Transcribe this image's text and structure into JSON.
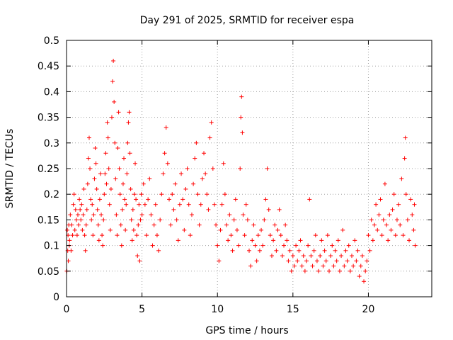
{
  "chart_data": {
    "type": "scatter",
    "title": "Day 291 of 2025, SRMTID for receiver espa",
    "xlabel": "GPS time / hours",
    "ylabel": "SRMTID / TECUs",
    "xlim": [
      0,
      24.2
    ],
    "ylim": [
      0,
      0.5
    ],
    "xticks": [
      0,
      5,
      10,
      15,
      20
    ],
    "xtick_labels": [
      "0",
      "5",
      "10",
      "15",
      "20"
    ],
    "yticks": [
      0,
      0.05,
      0.1,
      0.15,
      0.2,
      0.25,
      0.3,
      0.35,
      0.4,
      0.45,
      0.5
    ],
    "ytick_labels": [
      "0",
      "0.05",
      "0.1",
      "0.15",
      "0.2",
      "0.25",
      "0.3",
      "0.35",
      "0.4",
      "0.45",
      "0.5"
    ],
    "grid": true,
    "marker": "+",
    "series": [
      {
        "name": "espa",
        "color": "#ff0000",
        "points": [
          [
            0.02,
            0.05
          ],
          [
            0.05,
            0.13
          ],
          [
            0.08,
            0.09
          ],
          [
            0.1,
            0.12
          ],
          [
            0.12,
            0.07
          ],
          [
            0.15,
            0.14
          ],
          [
            0.18,
            0.1
          ],
          [
            0.2,
            0.11
          ],
          [
            0.25,
            0.16
          ],
          [
            0.3,
            0.09
          ],
          [
            0.35,
            0.14
          ],
          [
            0.4,
            0.12
          ],
          [
            0.45,
            0.18
          ],
          [
            0.5,
            0.2
          ],
          [
            0.55,
            0.13
          ],
          [
            0.6,
            0.17
          ],
          [
            0.65,
            0.15
          ],
          [
            0.7,
            0.12
          ],
          [
            0.75,
            0.16
          ],
          [
            0.8,
            0.14
          ],
          [
            0.85,
            0.19
          ],
          [
            0.9,
            0.17
          ],
          [
            0.95,
            0.15
          ],
          [
            1.0,
            0.18
          ],
          [
            1.05,
            0.13
          ],
          [
            1.1,
            0.16
          ],
          [
            1.15,
            0.21
          ],
          [
            1.2,
            0.12
          ],
          [
            1.25,
            0.09
          ],
          [
            1.3,
            0.14
          ],
          [
            1.35,
            0.17
          ],
          [
            1.4,
            0.22
          ],
          [
            1.45,
            0.27
          ],
          [
            1.5,
            0.31
          ],
          [
            1.55,
            0.25
          ],
          [
            1.6,
            0.19
          ],
          [
            1.65,
            0.15
          ],
          [
            1.7,
            0.18
          ],
          [
            1.75,
            0.12
          ],
          [
            1.8,
            0.16
          ],
          [
            1.85,
            0.23
          ],
          [
            1.9,
            0.29
          ],
          [
            1.95,
            0.26
          ],
          [
            2.0,
            0.21
          ],
          [
            2.05,
            0.17
          ],
          [
            2.1,
            0.14
          ],
          [
            2.15,
            0.11
          ],
          [
            2.2,
            0.19
          ],
          [
            2.25,
            0.24
          ],
          [
            2.3,
            0.16
          ],
          [
            2.35,
            0.12
          ],
          [
            2.4,
            0.1
          ],
          [
            2.45,
            0.15
          ],
          [
            2.5,
            0.2
          ],
          [
            2.55,
            0.24
          ],
          [
            2.6,
            0.28
          ],
          [
            2.65,
            0.22
          ],
          [
            2.7,
            0.34
          ],
          [
            2.75,
            0.31
          ],
          [
            2.8,
            0.25
          ],
          [
            2.85,
            0.18
          ],
          [
            2.9,
            0.13
          ],
          [
            2.95,
            0.21
          ],
          [
            3.0,
            0.35
          ],
          [
            3.05,
            0.42
          ],
          [
            3.1,
            0.46
          ],
          [
            3.15,
            0.38
          ],
          [
            3.2,
            0.3
          ],
          [
            3.25,
            0.23
          ],
          [
            3.3,
            0.16
          ],
          [
            3.35,
            0.12
          ],
          [
            3.4,
            0.29
          ],
          [
            3.45,
            0.36
          ],
          [
            3.5,
            0.25
          ],
          [
            3.55,
            0.2
          ],
          [
            3.6,
            0.14
          ],
          [
            3.65,
            0.1
          ],
          [
            3.7,
            0.17
          ],
          [
            3.75,
            0.22
          ],
          [
            3.8,
            0.27
          ],
          [
            3.85,
            0.19
          ],
          [
            3.9,
            0.13
          ],
          [
            3.95,
            0.18
          ],
          [
            4.0,
            0.24
          ],
          [
            4.05,
            0.3
          ],
          [
            4.1,
            0.34
          ],
          [
            4.15,
            0.36
          ],
          [
            4.2,
            0.28
          ],
          [
            4.25,
            0.21
          ],
          [
            4.3,
            0.15
          ],
          [
            4.35,
            0.11
          ],
          [
            4.4,
            0.17
          ],
          [
            4.45,
            0.13
          ],
          [
            4.5,
            0.2
          ],
          [
            4.55,
            0.26
          ],
          [
            4.6,
            0.19
          ],
          [
            4.65,
            0.12
          ],
          [
            4.7,
            0.08
          ],
          [
            4.75,
            0.14
          ],
          [
            4.8,
            0.18
          ],
          [
            4.85,
            0.07
          ],
          [
            4.9,
            0.15
          ],
          [
            4.95,
            0.2
          ],
          [
            5.0,
            0.16
          ],
          [
            5.1,
            0.22
          ],
          [
            5.2,
            0.18
          ],
          [
            5.3,
            0.12
          ],
          [
            5.4,
            0.19
          ],
          [
            5.5,
            0.23
          ],
          [
            5.6,
            0.16
          ],
          [
            5.7,
            0.1
          ],
          [
            5.8,
            0.14
          ],
          [
            5.9,
            0.18
          ],
          [
            6.0,
            0.12
          ],
          [
            6.1,
            0.09
          ],
          [
            6.2,
            0.15
          ],
          [
            6.3,
            0.2
          ],
          [
            6.4,
            0.24
          ],
          [
            6.5,
            0.28
          ],
          [
            6.6,
            0.33
          ],
          [
            6.7,
            0.26
          ],
          [
            6.8,
            0.19
          ],
          [
            6.9,
            0.14
          ],
          [
            7.0,
            0.2
          ],
          [
            7.1,
            0.17
          ],
          [
            7.2,
            0.22
          ],
          [
            7.3,
            0.15
          ],
          [
            7.4,
            0.11
          ],
          [
            7.5,
            0.18
          ],
          [
            7.6,
            0.24
          ],
          [
            7.7,
            0.19
          ],
          [
            7.8,
            0.13
          ],
          [
            7.9,
            0.21
          ],
          [
            8.0,
            0.25
          ],
          [
            8.1,
            0.18
          ],
          [
            8.2,
            0.12
          ],
          [
            8.3,
            0.16
          ],
          [
            8.4,
            0.22
          ],
          [
            8.5,
            0.27
          ],
          [
            8.6,
            0.3
          ],
          [
            8.7,
            0.2
          ],
          [
            8.8,
            0.14
          ],
          [
            8.9,
            0.18
          ],
          [
            9.0,
            0.23
          ],
          [
            9.1,
            0.28
          ],
          [
            9.2,
            0.24
          ],
          [
            9.3,
            0.2
          ],
          [
            9.4,
            0.17
          ],
          [
            9.5,
            0.31
          ],
          [
            9.6,
            0.34
          ],
          [
            9.7,
            0.25
          ],
          [
            9.8,
            0.18
          ],
          [
            9.9,
            0.14
          ],
          [
            10.0,
            0.1
          ],
          [
            10.1,
            0.07
          ],
          [
            10.2,
            0.13
          ],
          [
            10.3,
            0.18
          ],
          [
            10.4,
            0.26
          ],
          [
            10.5,
            0.2
          ],
          [
            10.6,
            0.14
          ],
          [
            10.7,
            0.11
          ],
          [
            10.8,
            0.16
          ],
          [
            10.9,
            0.12
          ],
          [
            11.0,
            0.09
          ],
          [
            11.1,
            0.15
          ],
          [
            11.2,
            0.19
          ],
          [
            11.3,
            0.13
          ],
          [
            11.4,
            0.1
          ],
          [
            11.5,
            0.25
          ],
          [
            11.55,
            0.35
          ],
          [
            11.6,
            0.39
          ],
          [
            11.65,
            0.32
          ],
          [
            11.7,
            0.16
          ],
          [
            11.8,
            0.12
          ],
          [
            11.9,
            0.18
          ],
          [
            12.0,
            0.15
          ],
          [
            12.1,
            0.09
          ],
          [
            12.2,
            0.06
          ],
          [
            12.3,
            0.11
          ],
          [
            12.4,
            0.14
          ],
          [
            12.5,
            0.1
          ],
          [
            12.6,
            0.07
          ],
          [
            12.7,
            0.12
          ],
          [
            12.8,
            0.09
          ],
          [
            12.9,
            0.13
          ],
          [
            13.0,
            0.1
          ],
          [
            13.1,
            0.15
          ],
          [
            13.2,
            0.19
          ],
          [
            13.3,
            0.25
          ],
          [
            13.4,
            0.17
          ],
          [
            13.5,
            0.12
          ],
          [
            13.6,
            0.08
          ],
          [
            13.7,
            0.11
          ],
          [
            13.8,
            0.14
          ],
          [
            13.9,
            0.09
          ],
          [
            14.0,
            0.13
          ],
          [
            14.1,
            0.17
          ],
          [
            14.2,
            0.12
          ],
          [
            14.3,
            0.08
          ],
          [
            14.4,
            0.1
          ],
          [
            14.5,
            0.14
          ],
          [
            14.6,
            0.11
          ],
          [
            14.7,
            0.07
          ],
          [
            14.8,
            0.09
          ],
          [
            14.9,
            0.05
          ],
          [
            15.0,
            0.08
          ],
          [
            15.1,
            0.06
          ],
          [
            15.2,
            0.1
          ],
          [
            15.3,
            0.07
          ],
          [
            15.4,
            0.09
          ],
          [
            15.5,
            0.11
          ],
          [
            15.6,
            0.06
          ],
          [
            15.7,
            0.08
          ],
          [
            15.8,
            0.05
          ],
          [
            15.9,
            0.07
          ],
          [
            16.0,
            0.1
          ],
          [
            16.1,
            0.19
          ],
          [
            16.2,
            0.08
          ],
          [
            16.3,
            0.06
          ],
          [
            16.4,
            0.09
          ],
          [
            16.5,
            0.12
          ],
          [
            16.6,
            0.07
          ],
          [
            16.7,
            0.05
          ],
          [
            16.8,
            0.08
          ],
          [
            16.9,
            0.11
          ],
          [
            17.0,
            0.06
          ],
          [
            17.1,
            0.09
          ],
          [
            17.2,
            0.07
          ],
          [
            17.3,
            0.12
          ],
          [
            17.4,
            0.05
          ],
          [
            17.5,
            0.08
          ],
          [
            17.6,
            0.1
          ],
          [
            17.7,
            0.06
          ],
          [
            17.8,
            0.09
          ],
          [
            17.9,
            0.07
          ],
          [
            18.0,
            0.11
          ],
          [
            18.1,
            0.05
          ],
          [
            18.2,
            0.08
          ],
          [
            18.3,
            0.13
          ],
          [
            18.4,
            0.06
          ],
          [
            18.5,
            0.09
          ],
          [
            18.6,
            0.07
          ],
          [
            18.7,
            0.1
          ],
          [
            18.8,
            0.05
          ],
          [
            18.9,
            0.08
          ],
          [
            19.0,
            0.06
          ],
          [
            19.1,
            0.11
          ],
          [
            19.2,
            0.07
          ],
          [
            19.3,
            0.09
          ],
          [
            19.4,
            0.04
          ],
          [
            19.5,
            0.06
          ],
          [
            19.6,
            0.08
          ],
          [
            19.7,
            0.03
          ],
          [
            19.8,
            0.05
          ],
          [
            19.9,
            0.07
          ],
          [
            20.0,
            0.12
          ],
          [
            20.1,
            0.09
          ],
          [
            20.2,
            0.15
          ],
          [
            20.3,
            0.11
          ],
          [
            20.4,
            0.14
          ],
          [
            20.5,
            0.18
          ],
          [
            20.6,
            0.13
          ],
          [
            20.7,
            0.16
          ],
          [
            20.8,
            0.19
          ],
          [
            20.9,
            0.12
          ],
          [
            21.0,
            0.15
          ],
          [
            21.1,
            0.22
          ],
          [
            21.2,
            0.14
          ],
          [
            21.3,
            0.11
          ],
          [
            21.4,
            0.16
          ],
          [
            21.5,
            0.13
          ],
          [
            21.6,
            0.17
          ],
          [
            21.7,
            0.2
          ],
          [
            21.8,
            0.12
          ],
          [
            21.9,
            0.15
          ],
          [
            22.0,
            0.18
          ],
          [
            22.1,
            0.14
          ],
          [
            22.2,
            0.23
          ],
          [
            22.3,
            0.12
          ],
          [
            22.4,
            0.27
          ],
          [
            22.45,
            0.31
          ],
          [
            22.5,
            0.2
          ],
          [
            22.6,
            0.15
          ],
          [
            22.7,
            0.11
          ],
          [
            22.8,
            0.19
          ],
          [
            22.9,
            0.16
          ],
          [
            23.0,
            0.13
          ],
          [
            23.05,
            0.18
          ],
          [
            23.1,
            0.1
          ]
        ]
      }
    ]
  }
}
